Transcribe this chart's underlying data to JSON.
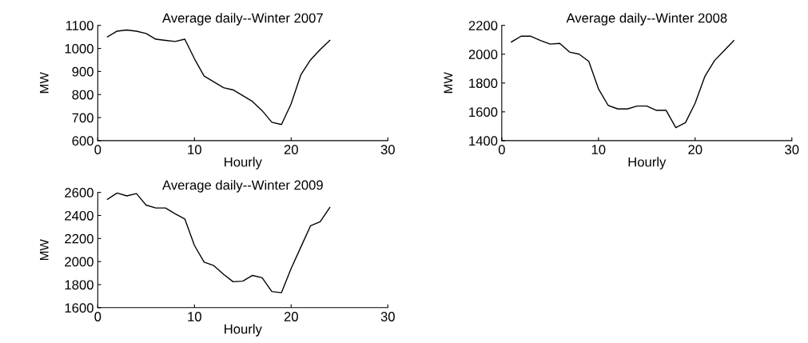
{
  "chart_data": [
    {
      "type": "line",
      "title": "Average daily--Winter 2007",
      "xlabel": "Hourly",
      "ylabel": "MW",
      "x": [
        1,
        2,
        3,
        4,
        5,
        6,
        7,
        8,
        9,
        10,
        11,
        12,
        13,
        14,
        15,
        16,
        17,
        18,
        19,
        20,
        21,
        22,
        23,
        24
      ],
      "series": [
        {
          "color": "#000000",
          "values": [
            1050,
            1075,
            1080,
            1075,
            1065,
            1040,
            1035,
            1030,
            1040,
            955,
            880,
            855,
            830,
            820,
            795,
            770,
            730,
            680,
            670,
            760,
            885,
            950,
            995,
            1035
          ]
        }
      ],
      "xlim": [
        0,
        30
      ],
      "xticks": [
        0,
        10,
        20,
        30
      ],
      "ylim": [
        600,
        1100
      ],
      "yticks": [
        600,
        700,
        800,
        900,
        1000,
        1100
      ],
      "grid": false
    },
    {
      "type": "line",
      "title": "Average daily--Winter 2008",
      "xlabel": "Hourly",
      "ylabel": "MW",
      "x": [
        1,
        2,
        3,
        4,
        5,
        6,
        7,
        8,
        9,
        10,
        11,
        12,
        13,
        14,
        15,
        16,
        17,
        18,
        19,
        20,
        21,
        22,
        23,
        24
      ],
      "series": [
        {
          "color": "#000000",
          "values": [
            2085,
            2125,
            2125,
            2095,
            2070,
            2075,
            2015,
            2000,
            1950,
            1760,
            1645,
            1620,
            1620,
            1640,
            1640,
            1610,
            1610,
            1490,
            1525,
            1660,
            1845,
            1955,
            2025,
            2095
          ]
        }
      ],
      "xlim": [
        0,
        30
      ],
      "xticks": [
        0,
        10,
        20,
        30
      ],
      "ylim": [
        1400,
        2200
      ],
      "yticks": [
        1400,
        1600,
        1800,
        2000,
        2200
      ],
      "grid": false
    },
    {
      "type": "line",
      "title": "Average daily--Winter 2009",
      "xlabel": "Hourly",
      "ylabel": "MW",
      "x": [
        1,
        2,
        3,
        4,
        5,
        6,
        7,
        8,
        9,
        10,
        11,
        12,
        13,
        14,
        15,
        16,
        17,
        18,
        19,
        20,
        21,
        22,
        23,
        24
      ],
      "series": [
        {
          "color": "#000000",
          "values": [
            2540,
            2595,
            2570,
            2590,
            2490,
            2465,
            2465,
            2415,
            2370,
            2140,
            1995,
            1965,
            1890,
            1825,
            1830,
            1880,
            1860,
            1740,
            1730,
            1940,
            2125,
            2310,
            2345,
            2470
          ]
        }
      ],
      "xlim": [
        0,
        30
      ],
      "xticks": [
        0,
        10,
        20,
        30
      ],
      "ylim": [
        1600,
        2600
      ],
      "yticks": [
        1600,
        1800,
        2000,
        2200,
        2400,
        2600
      ],
      "grid": false
    }
  ]
}
